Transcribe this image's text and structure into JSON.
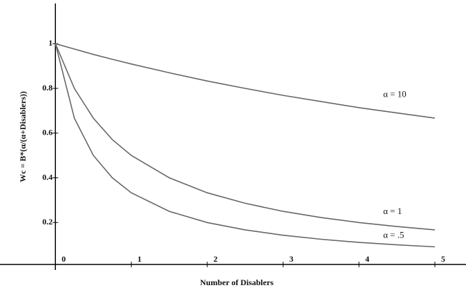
{
  "chart_data": {
    "type": "line",
    "xlabel": "Number of Disablers",
    "ylabel": "Wc = B*(α/(α+Disablers))",
    "x": [
      0,
      0.25,
      0.5,
      0.75,
      1,
      1.5,
      2,
      2.5,
      3,
      3.5,
      4,
      4.5,
      5
    ],
    "series": [
      {
        "name": "α = 10",
        "color": "#666666",
        "values": [
          1,
          0.976,
          0.952,
          0.93,
          0.909,
          0.87,
          0.833,
          0.8,
          0.769,
          0.741,
          0.714,
          0.69,
          0.667
        ]
      },
      {
        "name": "α = 1",
        "color": "#666666",
        "values": [
          1,
          0.8,
          0.667,
          0.571,
          0.5,
          0.4,
          0.333,
          0.286,
          0.25,
          0.222,
          0.2,
          0.182,
          0.167
        ]
      },
      {
        "name": "α = .5",
        "color": "#666666",
        "values": [
          1,
          0.667,
          0.5,
          0.4,
          0.333,
          0.25,
          0.2,
          0.167,
          0.143,
          0.125,
          0.111,
          0.1,
          0.091
        ]
      }
    ],
    "xlim": [
      -0.73,
      5.41
    ],
    "ylim": [
      0,
      1.18
    ],
    "xticks": [
      0,
      1,
      2,
      3,
      4,
      5
    ],
    "yticks": [
      0.2,
      0.4,
      0.6,
      0.8,
      1
    ]
  }
}
